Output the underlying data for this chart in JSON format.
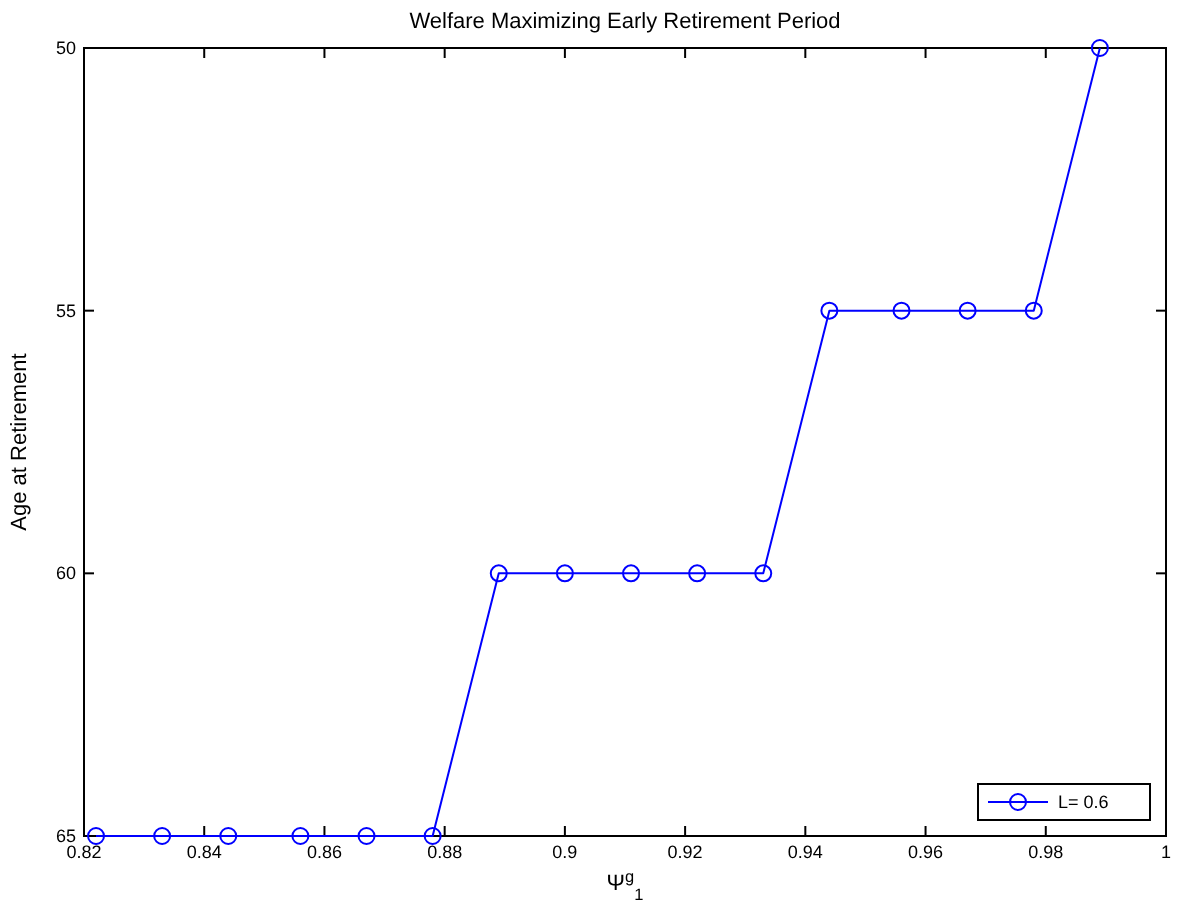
{
  "chart_data": {
    "type": "line",
    "title": "Welfare Maximizing Early Retirement Period",
    "xlabel": "Ψ$^{g}$$_{1}$",
    "ylabel": "Age at Retirement",
    "x": [
      0.822,
      0.833,
      0.844,
      0.856,
      0.867,
      0.878,
      0.889,
      0.9,
      0.911,
      0.922,
      0.933,
      0.944,
      0.956,
      0.967,
      0.978,
      0.989
    ],
    "series": [
      {
        "name": "L= 0.6",
        "color": "#0000ff",
        "values": [
          65,
          65,
          65,
          65,
          65,
          65,
          60,
          60,
          60,
          60,
          60,
          55,
          55,
          55,
          55,
          50
        ]
      }
    ],
    "xlim": [
      0.82,
      1
    ],
    "xticks": [
      0.82,
      0.84,
      0.86,
      0.88,
      0.9,
      0.92,
      0.94,
      0.96,
      0.98,
      1
    ],
    "ylim": [
      65,
      50
    ],
    "yticks": [
      50,
      55,
      60,
      65
    ],
    "grid": false,
    "legend": "bottom right",
    "marker": "circle",
    "line_style": "solid"
  }
}
